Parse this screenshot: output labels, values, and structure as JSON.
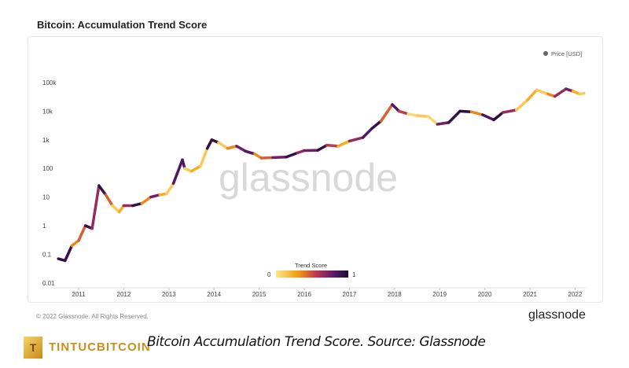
{
  "header": {
    "title": "Bitcoin: Accumulation Trend Score"
  },
  "footer": {
    "copyright": "© 2022 Glassnode. All Rights Reserved.",
    "brand": "glassnode"
  },
  "caption": "Bitcoin Accumulation Trend Score. Source: Glassnode",
  "site_logo": "TINTUCBITCOIN",
  "chart_data": {
    "type": "scatter",
    "title": "Bitcoin: Accumulation Trend Score",
    "watermark": "glassnode",
    "legend": {
      "label": "Price [USD]",
      "position": "top-right",
      "color": "#666666"
    },
    "colorbar": {
      "title": "Trend Score",
      "min_label": "0",
      "max_label": "1",
      "colors": [
        "#fde68a",
        "#f59e0b",
        "#c2364f",
        "#5b1a6e",
        "#1a0b2e"
      ]
    },
    "y_scale": "log",
    "ylim": [
      0.01,
      100000
    ],
    "y_ticks": [
      "0.01",
      "0.1",
      "1",
      "10",
      "100",
      "1k",
      "10k",
      "100k"
    ],
    "x_ticks": [
      "2011",
      "2012",
      "2013",
      "2014",
      "2015",
      "2016",
      "2017",
      "2018",
      "2019",
      "2020",
      "2021",
      "2022"
    ],
    "xlim": [
      2010.5,
      2022.3
    ],
    "points": [
      [
        2010.55,
        0.07,
        0.9
      ],
      [
        2010.7,
        0.06,
        0.9
      ],
      [
        2010.85,
        0.2,
        0.3
      ],
      [
        2011.0,
        0.3,
        0.4
      ],
      [
        2011.15,
        1.0,
        0.9
      ],
      [
        2011.3,
        0.8,
        0.6
      ],
      [
        2011.45,
        25,
        0.9
      ],
      [
        2011.6,
        12,
        0.4
      ],
      [
        2011.75,
        5,
        0.1
      ],
      [
        2011.9,
        3,
        0.2
      ],
      [
        2012.0,
        5,
        0.6
      ],
      [
        2012.2,
        5,
        0.9
      ],
      [
        2012.4,
        6,
        0.3
      ],
      [
        2012.6,
        10,
        0.7
      ],
      [
        2012.8,
        12,
        0.2
      ],
      [
        2012.95,
        13,
        0.1
      ],
      [
        2013.1,
        30,
        0.8
      ],
      [
        2013.3,
        200,
        0.8
      ],
      [
        2013.35,
        100,
        0.1
      ],
      [
        2013.5,
        80,
        0.2
      ],
      [
        2013.7,
        120,
        0.1
      ],
      [
        2013.85,
        500,
        0.9
      ],
      [
        2013.95,
        1000,
        0.9
      ],
      [
        2014.1,
        800,
        0.1
      ],
      [
        2014.3,
        500,
        0.3
      ],
      [
        2014.5,
        600,
        0.7
      ],
      [
        2014.7,
        400,
        0.8
      ],
      [
        2014.9,
        320,
        0.3
      ],
      [
        2015.05,
        230,
        0.4
      ],
      [
        2015.3,
        240,
        0.7
      ],
      [
        2015.6,
        250,
        0.9
      ],
      [
        2015.85,
        350,
        0.6
      ],
      [
        2016.0,
        420,
        0.7
      ],
      [
        2016.3,
        430,
        0.9
      ],
      [
        2016.5,
        650,
        0.5
      ],
      [
        2016.75,
        600,
        0.2
      ],
      [
        2017.0,
        900,
        0.6
      ],
      [
        2017.3,
        1200,
        0.8
      ],
      [
        2017.5,
        2500,
        0.9
      ],
      [
        2017.7,
        4500,
        0.4
      ],
      [
        2017.95,
        17000,
        0.8
      ],
      [
        2018.1,
        10000,
        0.5
      ],
      [
        2018.3,
        8000,
        0.05
      ],
      [
        2018.5,
        7000,
        0.1
      ],
      [
        2018.75,
        6500,
        0.05
      ],
      [
        2018.95,
        3500,
        0.7
      ],
      [
        2019.2,
        4000,
        0.9
      ],
      [
        2019.45,
        10000,
        0.95
      ],
      [
        2019.7,
        9500,
        0.3
      ],
      [
        2019.95,
        7500,
        0.8
      ],
      [
        2020.2,
        5000,
        0.95
      ],
      [
        2020.4,
        9000,
        0.6
      ],
      [
        2020.7,
        11000,
        0.1
      ],
      [
        2020.95,
        25000,
        0.2
      ],
      [
        2021.15,
        55000,
        0.1
      ],
      [
        2021.4,
        40000,
        0.3
      ],
      [
        2021.55,
        33000,
        0.6
      ],
      [
        2021.8,
        60000,
        0.7
      ],
      [
        2021.95,
        50000,
        0.2
      ],
      [
        2022.1,
        40000,
        0.1
      ],
      [
        2022.2,
        42000,
        0.2
      ]
    ]
  }
}
